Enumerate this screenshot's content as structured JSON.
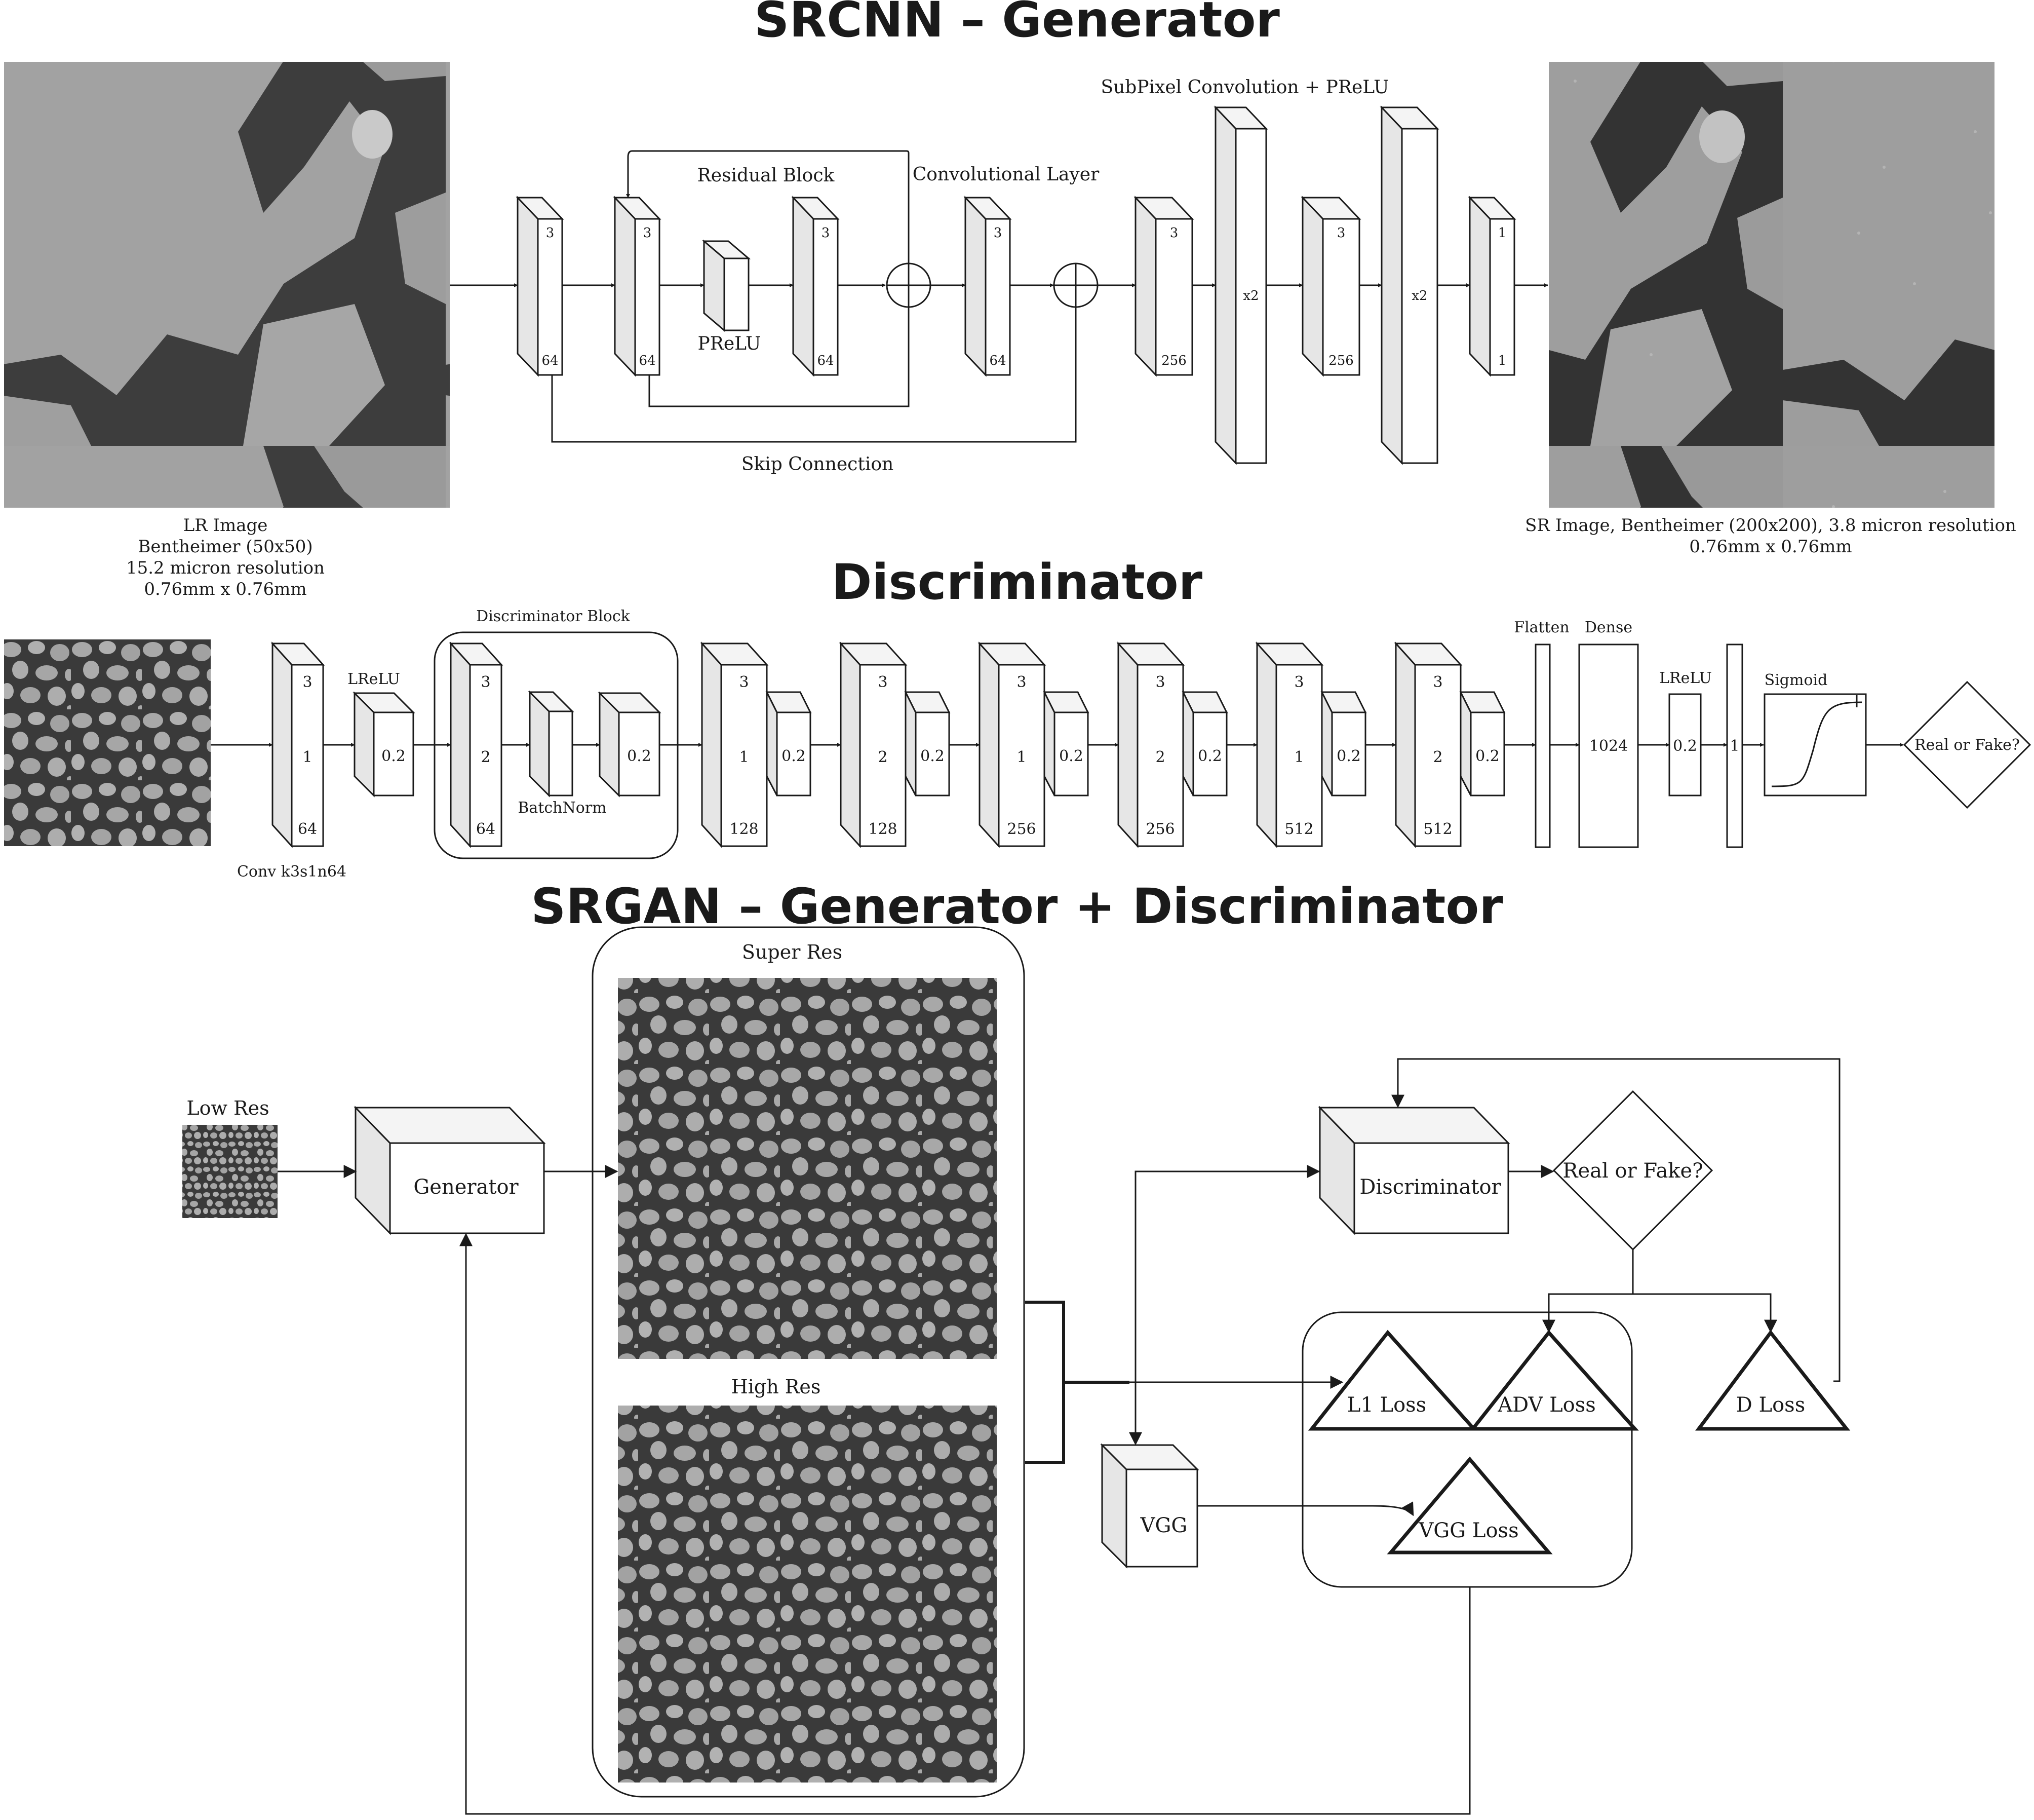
{
  "titles": {
    "generator": "SRCNN – Generator",
    "discriminator": "Discriminator",
    "srgan": "SRGAN – Generator + Discriminator"
  },
  "generator": {
    "residual_block": "Residual Block",
    "conv_layer": "Convolutional Layer",
    "subpixel": "SubPixel Convolution + PReLU",
    "prelu": "PReLU",
    "skip": "Skip Connection",
    "lr_caption": [
      "LR Image",
      "Bentheimer (50x50)",
      "15.2 micron resolution",
      "0.76mm x 0.76mm"
    ],
    "sr_caption": [
      "SR Image, Bentheimer (200x200), 3.8 micron resolution",
      "0.76mm x 0.76mm"
    ],
    "layers": [
      {
        "top": "3",
        "bottom": "64"
      },
      {
        "top": "3",
        "bottom": "64"
      },
      {
        "top": "3",
        "bottom": "64"
      },
      {
        "top": "3",
        "bottom": "64"
      },
      {
        "top": "3",
        "bottom": "256"
      },
      {
        "mid": "x2"
      },
      {
        "top": "3",
        "bottom": "256"
      },
      {
        "mid": "x2"
      },
      {
        "top": "1",
        "bottom": "1"
      }
    ]
  },
  "discriminator": {
    "block_label": "Discriminator Block",
    "lrelu": "LReLU",
    "lrelu_value": "0.2",
    "batchnorm": "BatchNorm",
    "conv_caption": "Conv k3s1n64",
    "flatten": "Flatten",
    "dense": "Dense",
    "dense_value": "1024",
    "out_value": "1",
    "sigmoid": "Sigmoid",
    "decision": "Real or Fake?",
    "conv1": {
      "top": "3",
      "mid": "1",
      "bottom": "64"
    },
    "block_conv": {
      "top": "3",
      "mid": "2",
      "bottom": "64"
    },
    "blocks": [
      {
        "top": "3",
        "mid": "1",
        "bottom": "128"
      },
      {
        "top": "3",
        "mid": "2",
        "bottom": "128"
      },
      {
        "top": "3",
        "mid": "1",
        "bottom": "256"
      },
      {
        "top": "3",
        "mid": "2",
        "bottom": "256"
      },
      {
        "top": "3",
        "mid": "1",
        "bottom": "512"
      },
      {
        "top": "3",
        "mid": "2",
        "bottom": "512"
      }
    ]
  },
  "srgan": {
    "low_res": "Low Res",
    "generator": "Generator",
    "super_res": "Super Res",
    "high_res": "High Res",
    "discriminator": "Discriminator",
    "decision": "Real or Fake?",
    "vgg": "VGG",
    "l1_loss": "L1 Loss",
    "adv_loss": "ADV Loss",
    "d_loss": "D Loss",
    "vgg_loss": "VGG Loss"
  }
}
